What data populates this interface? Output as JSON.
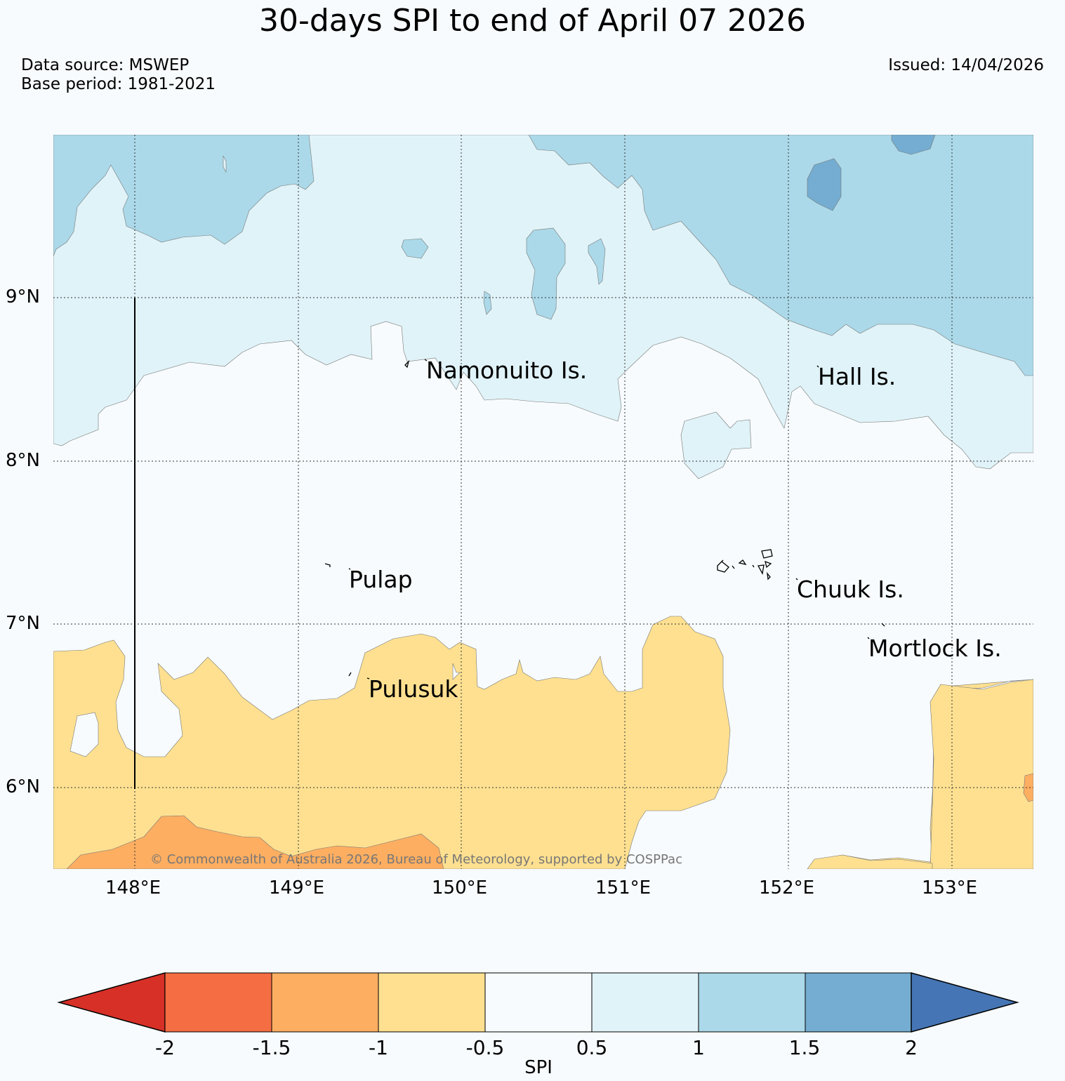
{
  "title": "30-days SPI to end of April 07 2026",
  "data_source": "Data source: MSWEP",
  "base_period": "Base period: 1981-2021",
  "issued": "Issued: 14/04/2026",
  "copyright": "© Commonwealth of Australia 2026, Bureau of Meteorology, supported by COSPPac",
  "map": {
    "lat_labels": [
      "9°N",
      "8°N",
      "7°N",
      "6°N"
    ],
    "lon_labels": [
      "148°E",
      "149°E",
      "150°E",
      "151°E",
      "152°E",
      "153°E"
    ],
    "places": [
      {
        "name": "Namonuito Is."
      },
      {
        "name": "Hall Is."
      },
      {
        "name": "Pulap"
      },
      {
        "name": "Chuuk Is."
      },
      {
        "name": "Mortlock Is."
      },
      {
        "name": "Pulusuk"
      }
    ]
  },
  "colorbar": {
    "title": "SPI",
    "ticks": [
      "-2",
      "-1.5",
      "-1",
      "-0.5",
      "0.5",
      "1",
      "1.5",
      "2"
    ],
    "colors": [
      "#d73027",
      "#f46d43",
      "#fdae61",
      "#fee090",
      "#f7fbfd",
      "#e0f3f8",
      "#abd9e9",
      "#74add1",
      "#4575b4"
    ]
  },
  "colors": {
    "very_wet": "#74add1",
    "wet": "#abd9e9",
    "slightly_wet": "#e0f3f8",
    "near_normal": "#f7fbfd",
    "slightly_dry": "#fee090",
    "dry": "#fdae61",
    "very_dry": "#f46d43"
  }
}
